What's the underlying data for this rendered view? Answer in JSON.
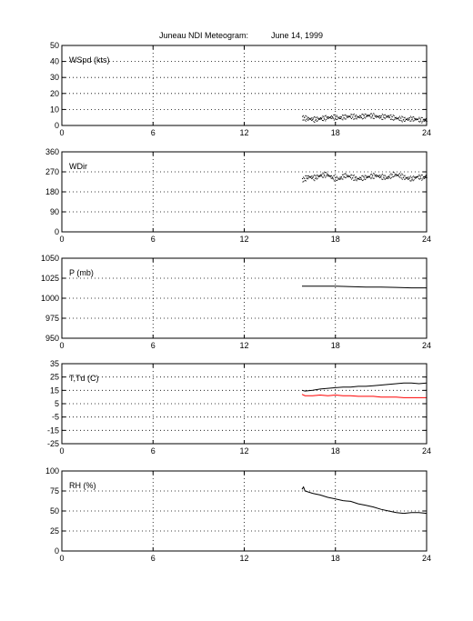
{
  "figure": {
    "title": "Juneau NDI Meteogram:",
    "date": "June 14, 1999"
  },
  "chart_data": [
    {
      "type": "scatter",
      "id": "wspd",
      "label": "WSpd (kts)",
      "xlim": [
        0,
        24
      ],
      "x_ticks": [
        0,
        6,
        12,
        18,
        24
      ],
      "ylim": [
        0,
        50
      ],
      "y_ticks": [
        0,
        10,
        20,
        30,
        40,
        50
      ],
      "grid": true,
      "series": [
        {
          "color": "#000000",
          "style": "dots",
          "x": [
            15.8,
            16.2,
            16.6,
            17.0,
            17.4,
            17.8,
            18.2,
            18.6,
            19.0,
            19.4,
            19.8,
            20.2,
            20.6,
            21.0,
            21.4,
            21.8,
            22.2,
            22.6,
            23.0,
            23.4,
            23.8,
            24.0
          ],
          "y": [
            5,
            4.5,
            4,
            4.5,
            5,
            5.5,
            5,
            5.5,
            6,
            5.5,
            6,
            6.5,
            6,
            5.5,
            6,
            5,
            4.5,
            4,
            4.5,
            4,
            3.5,
            4
          ]
        }
      ]
    },
    {
      "type": "scatter",
      "id": "wdir",
      "label": "WDir",
      "xlim": [
        0,
        24
      ],
      "x_ticks": [
        0,
        6,
        12,
        18,
        24
      ],
      "ylim": [
        0,
        360
      ],
      "y_ticks": [
        0,
        90,
        180,
        270,
        360
      ],
      "grid": true,
      "series": [
        {
          "color": "#000000",
          "style": "dots",
          "x": [
            15.8,
            16.2,
            16.6,
            17.0,
            17.4,
            17.8,
            18.2,
            18.6,
            19.0,
            19.4,
            19.8,
            20.2,
            20.6,
            21.0,
            21.4,
            21.8,
            22.2,
            22.6,
            23.0,
            23.4,
            23.8,
            24.0
          ],
          "y": [
            235,
            250,
            245,
            255,
            260,
            245,
            240,
            255,
            250,
            240,
            245,
            250,
            255,
            250,
            245,
            260,
            255,
            245,
            240,
            250,
            245,
            255
          ]
        }
      ]
    },
    {
      "type": "line",
      "id": "pressure",
      "label": "P (mb)",
      "xlim": [
        0,
        24
      ],
      "x_ticks": [
        0,
        6,
        12,
        18,
        24
      ],
      "ylim": [
        950,
        1050
      ],
      "y_ticks": [
        950,
        975,
        1000,
        1025,
        1050
      ],
      "grid": true,
      "series": [
        {
          "color": "#000000",
          "style": "line",
          "x": [
            15.8,
            17.0,
            18.0,
            19.0,
            20.0,
            21.0,
            22.0,
            23.0,
            24.0
          ],
          "y": [
            1015,
            1015,
            1015,
            1014.5,
            1014,
            1014,
            1013.5,
            1013,
            1013
          ]
        }
      ]
    },
    {
      "type": "line",
      "id": "ttd",
      "label": "T,Td (C)",
      "xlim": [
        0,
        24
      ],
      "x_ticks": [
        0,
        6,
        12,
        18,
        24
      ],
      "ylim": [
        -25,
        35
      ],
      "y_ticks": [
        -25,
        -15,
        -5,
        5,
        15,
        25,
        35
      ],
      "grid": true,
      "series": [
        {
          "color": "#000000",
          "style": "line",
          "x": [
            15.8,
            16.0,
            16.5,
            17.0,
            17.5,
            18.0,
            18.5,
            19.0,
            19.5,
            20.0,
            20.5,
            21.0,
            21.5,
            22.0,
            22.5,
            23.0,
            23.5,
            24.0
          ],
          "y": [
            15,
            14.5,
            15,
            16,
            16.5,
            17,
            17.5,
            17.5,
            18,
            18,
            18.5,
            19,
            19.5,
            20,
            20.5,
            20.5,
            20,
            20.5
          ]
        },
        {
          "color": "#ff0000",
          "style": "line",
          "x": [
            15.8,
            16.0,
            16.5,
            17.0,
            17.5,
            18.0,
            18.5,
            19.0,
            19.5,
            20.0,
            20.5,
            21.0,
            21.5,
            22.0,
            22.5,
            23.0,
            23.5,
            24.0
          ],
          "y": [
            12,
            11,
            11,
            11.5,
            11,
            11.5,
            11,
            11,
            10.5,
            10.5,
            10.5,
            10,
            10,
            10,
            9.5,
            9.5,
            9.5,
            9.5
          ]
        }
      ]
    },
    {
      "type": "line",
      "id": "rh",
      "label": "RH (%)",
      "xlim": [
        0,
        24
      ],
      "x_ticks": [
        0,
        6,
        12,
        18,
        24
      ],
      "ylim": [
        0,
        100
      ],
      "y_ticks": [
        0,
        25,
        50,
        75,
        100
      ],
      "grid": true,
      "series": [
        {
          "color": "#000000",
          "style": "line",
          "x": [
            15.8,
            15.9,
            16.0,
            16.5,
            17.0,
            17.5,
            18.0,
            18.5,
            19.0,
            19.5,
            20.0,
            20.5,
            21.0,
            21.5,
            22.0,
            22.5,
            23.0,
            23.5,
            24.0
          ],
          "y": [
            77,
            80,
            75,
            72,
            70,
            67,
            65,
            63,
            62,
            59,
            57,
            55,
            52,
            50,
            48,
            47,
            48,
            48,
            47
          ]
        }
      ]
    }
  ]
}
